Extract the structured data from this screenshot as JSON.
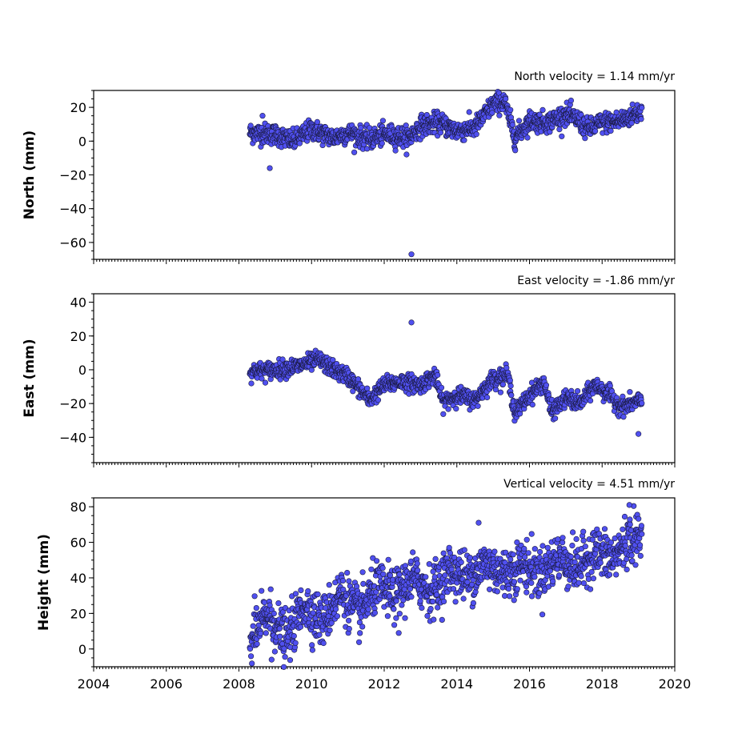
{
  "chart_data": [
    {
      "type": "scatter",
      "title": "North velocity = 1.14 mm/yr",
      "xlabel": "",
      "ylabel": "North (mm)",
      "xlim": [
        2004,
        2020
      ],
      "ylim": [
        -70,
        30
      ],
      "yticks": [
        20,
        0,
        -20,
        -40,
        -60
      ],
      "ytick_labels": [
        "20",
        "0",
        "−20",
        "−40",
        "−60"
      ],
      "x_tick_labels_visible": false,
      "marker_color": "#5050f0",
      "trend_points": [
        [
          2008.3,
          5
        ],
        [
          2009.0,
          4
        ],
        [
          2009.5,
          0
        ],
        [
          2010.0,
          7
        ],
        [
          2010.6,
          2
        ],
        [
          2011.0,
          5
        ],
        [
          2011.6,
          1
        ],
        [
          2012.0,
          4
        ],
        [
          2012.7,
          2
        ],
        [
          2013.0,
          9
        ],
        [
          2013.5,
          11
        ],
        [
          2014.0,
          6
        ],
        [
          2014.5,
          8
        ],
        [
          2015.0,
          22
        ],
        [
          2015.3,
          24
        ],
        [
          2015.6,
          2
        ],
        [
          2016.0,
          12
        ],
        [
          2016.5,
          11
        ],
        [
          2017.0,
          16
        ],
        [
          2017.3,
          13
        ],
        [
          2017.6,
          7
        ],
        [
          2018.0,
          11
        ],
        [
          2018.5,
          12
        ],
        [
          2019.0,
          17
        ]
      ],
      "y_spread": 3,
      "outliers": [
        [
          2008.85,
          -16
        ],
        [
          2008.65,
          15
        ],
        [
          2012.75,
          -67
        ]
      ],
      "x_range": [
        2008.3,
        2019.1
      ]
    },
    {
      "type": "scatter",
      "title": "East velocity = -1.86 mm/yr",
      "xlabel": "",
      "ylabel": "East (mm)",
      "xlim": [
        2004,
        2020
      ],
      "ylim": [
        -55,
        45
      ],
      "yticks": [
        40,
        20,
        0,
        -20,
        -40
      ],
      "ytick_labels": [
        "40",
        "20",
        "0",
        "−20",
        "−40"
      ],
      "x_tick_labels_visible": false,
      "marker_color": "#5050f0",
      "trend_points": [
        [
          2008.3,
          -1
        ],
        [
          2009.0,
          0
        ],
        [
          2009.6,
          2
        ],
        [
          2010.2,
          6
        ],
        [
          2010.6,
          0
        ],
        [
          2011.0,
          -4
        ],
        [
          2011.6,
          -18
        ],
        [
          2012.0,
          -9
        ],
        [
          2012.5,
          -7
        ],
        [
          2013.0,
          -9
        ],
        [
          2013.4,
          -3
        ],
        [
          2013.6,
          -19
        ],
        [
          2014.0,
          -15
        ],
        [
          2014.5,
          -18
        ],
        [
          2015.0,
          -5
        ],
        [
          2015.4,
          -3
        ],
        [
          2015.6,
          -26
        ],
        [
          2016.0,
          -15
        ],
        [
          2016.4,
          -7
        ],
        [
          2016.6,
          -25
        ],
        [
          2017.0,
          -17
        ],
        [
          2017.4,
          -20
        ],
        [
          2017.8,
          -9
        ],
        [
          2018.2,
          -15
        ],
        [
          2018.5,
          -22
        ],
        [
          2019.0,
          -19
        ]
      ],
      "y_spread": 2.5,
      "outliers": [
        [
          2012.75,
          28
        ],
        [
          2019.0,
          -38
        ]
      ],
      "x_range": [
        2008.3,
        2019.1
      ]
    },
    {
      "type": "scatter",
      "title": "Vertical velocity = 4.51 mm/yr",
      "xlabel": "",
      "ylabel": "Height (mm)",
      "xlim": [
        2004,
        2020
      ],
      "ylim": [
        -10,
        85
      ],
      "yticks": [
        80,
        60,
        40,
        20,
        0
      ],
      "ytick_labels": [
        "80",
        "60",
        "40",
        "20",
        "0"
      ],
      "x_tick_labels_visible": true,
      "xticks": [
        2004,
        2006,
        2008,
        2010,
        2012,
        2014,
        2016,
        2018,
        2020
      ],
      "xtick_labels": [
        "2004",
        "2006",
        "2008",
        "2010",
        "2012",
        "2014",
        "2016",
        "2018",
        "2020"
      ],
      "marker_color": "#5050f0",
      "trend_points": [
        [
          2008.3,
          5
        ],
        [
          2008.8,
          20
        ],
        [
          2009.3,
          5
        ],
        [
          2009.8,
          25
        ],
        [
          2010.3,
          15
        ],
        [
          2010.8,
          32
        ],
        [
          2011.3,
          20
        ],
        [
          2011.8,
          35
        ],
        [
          2012.3,
          30
        ],
        [
          2012.8,
          40
        ],
        [
          2013.3,
          32
        ],
        [
          2013.8,
          45
        ],
        [
          2014.3,
          40
        ],
        [
          2014.8,
          48
        ],
        [
          2015.3,
          42
        ],
        [
          2015.8,
          48
        ],
        [
          2016.3,
          42
        ],
        [
          2016.8,
          52
        ],
        [
          2017.3,
          45
        ],
        [
          2017.8,
          55
        ],
        [
          2018.3,
          50
        ],
        [
          2018.7,
          62
        ],
        [
          2019.0,
          62
        ]
      ],
      "y_spread": 7,
      "outliers": [
        [
          2008.9,
          -6
        ],
        [
          2018.75,
          81
        ],
        [
          2014.6,
          71
        ],
        [
          2012.4,
          9
        ]
      ],
      "x_range": [
        2008.3,
        2019.1
      ]
    }
  ]
}
